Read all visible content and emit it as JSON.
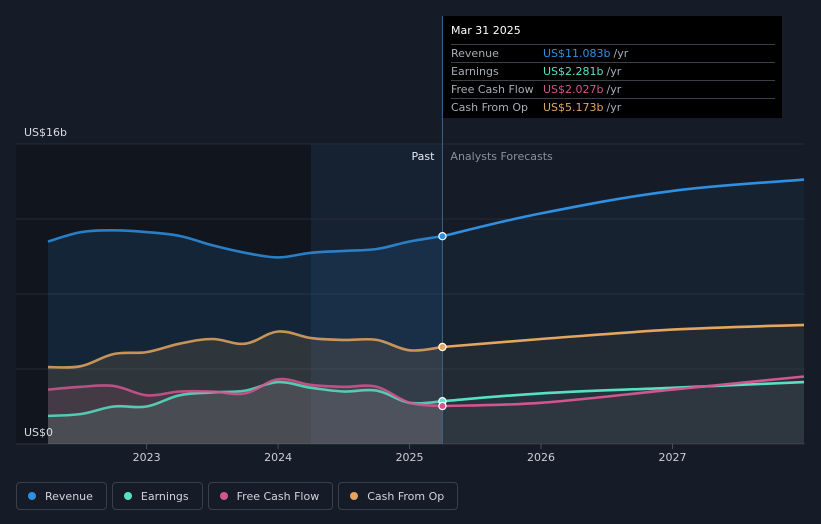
{
  "chart_data": {
    "type": "area",
    "title": "",
    "ylabel_top": "US$16b",
    "ylabel_bottom": "US$0",
    "ylim": [
      0,
      16
    ],
    "xlim": [
      2022.25,
      2028.0
    ],
    "x_ticks": [
      {
        "value": 2023.0,
        "label": "2023"
      },
      {
        "value": 2024.0,
        "label": "2024"
      },
      {
        "value": 2025.0,
        "label": "2025"
      },
      {
        "value": 2026.0,
        "label": "2026"
      },
      {
        "value": 2027.0,
        "label": "2027"
      }
    ],
    "past_label": "Past",
    "forecast_label": "Analysts Forecasts",
    "split_x": 2025.25,
    "highlight_start_x": 2024.25,
    "series": [
      {
        "name": "Revenue",
        "color": "#2f8fe0",
        "past": [
          [
            2022.25,
            10.8
          ],
          [
            2022.5,
            11.3
          ],
          [
            2022.75,
            11.4
          ],
          [
            2023.0,
            11.3
          ],
          [
            2023.25,
            11.1
          ],
          [
            2023.5,
            10.6
          ],
          [
            2023.75,
            10.2
          ],
          [
            2024.0,
            9.95
          ],
          [
            2024.25,
            10.2
          ],
          [
            2024.5,
            10.3
          ],
          [
            2024.75,
            10.4
          ],
          [
            2025.0,
            10.8
          ],
          [
            2025.25,
            11.083
          ]
        ],
        "forecast": [
          [
            2025.25,
            11.083
          ],
          [
            2026.0,
            12.3
          ],
          [
            2027.0,
            13.5
          ],
          [
            2028.0,
            14.1
          ]
        ]
      },
      {
        "name": "Earnings",
        "color": "#58e0c4",
        "past": [
          [
            2022.25,
            1.5
          ],
          [
            2022.5,
            1.6
          ],
          [
            2022.75,
            2.0
          ],
          [
            2023.0,
            2.0
          ],
          [
            2023.25,
            2.6
          ],
          [
            2023.5,
            2.75
          ],
          [
            2023.75,
            2.85
          ],
          [
            2024.0,
            3.3
          ],
          [
            2024.25,
            3.0
          ],
          [
            2024.5,
            2.8
          ],
          [
            2024.75,
            2.85
          ],
          [
            2025.0,
            2.2
          ],
          [
            2025.25,
            2.281
          ]
        ],
        "forecast": [
          [
            2025.25,
            2.281
          ],
          [
            2026.0,
            2.7
          ],
          [
            2027.0,
            3.0
          ],
          [
            2028.0,
            3.3
          ]
        ]
      },
      {
        "name": "Free Cash Flow",
        "color": "#d3558f",
        "past": [
          [
            2022.25,
            2.9
          ],
          [
            2022.5,
            3.05
          ],
          [
            2022.75,
            3.1
          ],
          [
            2023.0,
            2.6
          ],
          [
            2023.25,
            2.8
          ],
          [
            2023.5,
            2.8
          ],
          [
            2023.75,
            2.7
          ],
          [
            2024.0,
            3.45
          ],
          [
            2024.25,
            3.15
          ],
          [
            2024.5,
            3.05
          ],
          [
            2024.75,
            3.05
          ],
          [
            2025.0,
            2.2
          ],
          [
            2025.25,
            2.027
          ]
        ],
        "forecast": [
          [
            2025.25,
            2.027
          ],
          [
            2026.0,
            2.2
          ],
          [
            2027.0,
            2.9
          ],
          [
            2028.0,
            3.6
          ]
        ]
      },
      {
        "name": "Cash From Op",
        "color": "#e4a65e",
        "past": [
          [
            2022.25,
            4.1
          ],
          [
            2022.5,
            4.15
          ],
          [
            2022.75,
            4.8
          ],
          [
            2023.0,
            4.9
          ],
          [
            2023.25,
            5.35
          ],
          [
            2023.5,
            5.6
          ],
          [
            2023.75,
            5.35
          ],
          [
            2024.0,
            6.0
          ],
          [
            2024.25,
            5.65
          ],
          [
            2024.5,
            5.55
          ],
          [
            2024.75,
            5.55
          ],
          [
            2025.0,
            5.0
          ],
          [
            2025.25,
            5.173
          ]
        ],
        "forecast": [
          [
            2025.25,
            5.173
          ],
          [
            2026.0,
            5.6
          ],
          [
            2027.0,
            6.1
          ],
          [
            2028.0,
            6.35
          ]
        ]
      }
    ]
  },
  "tooltip": {
    "date": "Mar 31 2025",
    "rows": [
      {
        "label": "Revenue",
        "value": "US$11.083b",
        "unit": "/yr",
        "color": "#2f8fe0"
      },
      {
        "label": "Earnings",
        "value": "US$2.281b",
        "unit": "/yr",
        "color": "#58e0c4"
      },
      {
        "label": "Free Cash Flow",
        "value": "US$2.027b",
        "unit": "/yr",
        "color": "#d3558f"
      },
      {
        "label": "Cash From Op",
        "value": "US$5.173b",
        "unit": "/yr",
        "color": "#e4a65e"
      }
    ]
  },
  "legend": [
    {
      "label": "Revenue",
      "color": "#2f8fe0"
    },
    {
      "label": "Earnings",
      "color": "#58e0c4"
    },
    {
      "label": "Free Cash Flow",
      "color": "#d3558f"
    },
    {
      "label": "Cash From Op",
      "color": "#e4a65e"
    }
  ]
}
